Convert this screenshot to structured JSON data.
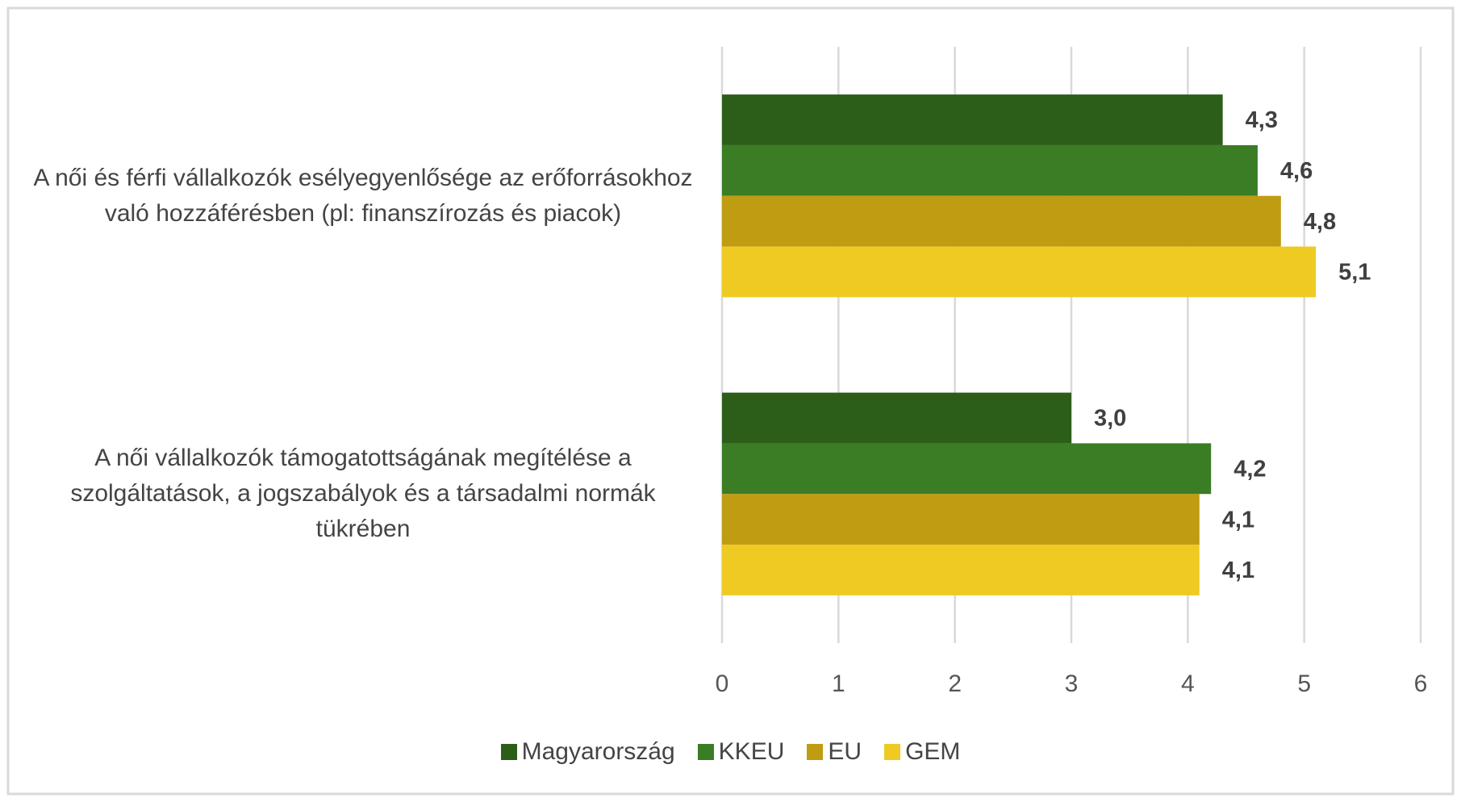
{
  "chart_data": {
    "type": "hbar",
    "categories": [
      "A női és férfi vállalkozók esélyegyenlősége az erőforrásokhoz való hozzáférésben (pl: finanszírozás és piacok)",
      "A női vállalkozók támogatottságának megítélése a szolgáltatások, a jogszabályok és a társadalmi normák tükrében"
    ],
    "series": [
      {
        "name": "Magyarország",
        "color": "#2c5e1a",
        "values": [
          4.3,
          3.0
        ],
        "value_labels": [
          "4,3",
          "3,0"
        ]
      },
      {
        "name": "KKEU",
        "color": "#3a7d24",
        "values": [
          4.6,
          4.2
        ],
        "value_labels": [
          "4,6",
          "4,2"
        ]
      },
      {
        "name": "EU",
        "color": "#bf9c12",
        "values": [
          4.8,
          4.1
        ],
        "value_labels": [
          "4,8",
          "4,1"
        ]
      },
      {
        "name": "GEM",
        "color": "#efca22",
        "values": [
          5.1,
          4.1
        ],
        "value_labels": [
          "5,1",
          "4,1"
        ]
      }
    ],
    "xlim": [
      0,
      6
    ],
    "xticks": [
      0,
      1,
      2,
      3,
      4,
      5,
      6
    ],
    "grid": true,
    "legend": "bottom"
  }
}
